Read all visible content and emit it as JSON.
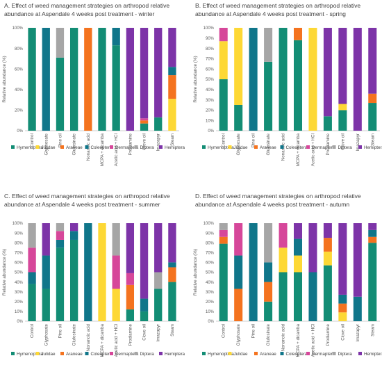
{
  "colors": {
    "Hymenoptera": "#138D75",
    "Julidae": "#FDD835",
    "Araneae": "#F4731F",
    "Coleoptera": "#10768A",
    "Dermaptera": "#D6479A",
    "Diptera": "#A6A6A6",
    "Hemiptera": "#7D34A8"
  },
  "chart_data": [
    {
      "type": "bar",
      "stacked": true,
      "title": "A. Effect of weed management strategies on arthropod relative abundance at Aspendale 4 weeks post treatment - winter",
      "title_lines": [
        "A. Effect of weed management strategies on arthropod relative",
        "abundance at Aspendale 4 weeks post treatment - winter"
      ],
      "ylabel": "Relative abundance (%)",
      "ylim": [
        0,
        100
      ],
      "yticks": [
        "0%",
        "20%",
        "40%",
        "60%",
        "80%",
        "100%"
      ],
      "grid": false,
      "legend": "bottom",
      "categories": [
        "Control",
        "Glyphosate",
        "Pine oil",
        "Glufosinate",
        "Nonanoic acid",
        "MCPA + dicamba",
        "Acetic acid + HCl",
        "Prodiamine",
        "Clove oil",
        "Imazapyr",
        "Steam"
      ],
      "series": [
        {
          "name": "Hymenoptera",
          "values": [
            100,
            0,
            71,
            100,
            0,
            100,
            83,
            0,
            7,
            13,
            0
          ]
        },
        {
          "name": "Julidae",
          "values": [
            0,
            0,
            0,
            0,
            0,
            0,
            0,
            0,
            0,
            0,
            31
          ]
        },
        {
          "name": "Araneae",
          "values": [
            0,
            0,
            0,
            0,
            100,
            0,
            0,
            0,
            3,
            0,
            23
          ]
        },
        {
          "name": "Coleoptera",
          "values": [
            0,
            100,
            0,
            0,
            0,
            0,
            17,
            0,
            0,
            0,
            8
          ]
        },
        {
          "name": "Dermaptera",
          "values": [
            0,
            0,
            0,
            0,
            0,
            0,
            0,
            0,
            2,
            0,
            0
          ]
        },
        {
          "name": "Diptera",
          "values": [
            0,
            0,
            29,
            0,
            0,
            0,
            0,
            0,
            0,
            0,
            0
          ]
        },
        {
          "name": "Hemiptera",
          "values": [
            0,
            0,
            0,
            0,
            0,
            0,
            0,
            100,
            88,
            87,
            38
          ]
        }
      ]
    },
    {
      "type": "bar",
      "stacked": true,
      "title": "B. Effect of weed management strategies on arthropod relative abundance at Aspendale 4 weeks post treatment - spring",
      "title_lines": [
        "B. Effect of weed management strategies on arthropod relative",
        "abundance at Aspendale 4 weeks post treatment - spring"
      ],
      "ylabel": "Relative abundance (%)",
      "ylim": [
        0,
        100
      ],
      "yticks": [
        "0%",
        "10%",
        "20%",
        "30%",
        "40%",
        "50%",
        "60%",
        "70%",
        "80%",
        "90%",
        "100%"
      ],
      "grid": false,
      "legend": "bottom",
      "categories": [
        "Control",
        "Glyphosate",
        "Pine oil",
        "Glufosinate",
        "Nonanoic acid",
        "MCPA + dicamba",
        "Acetic acid + HCl",
        "Prodiamine",
        "Clove oil",
        "Imazapyr",
        "Steam"
      ],
      "series": [
        {
          "name": "Hymenoptera",
          "values": [
            50,
            25,
            0,
            67,
            100,
            88,
            0,
            14,
            20,
            0,
            27
          ]
        },
        {
          "name": "Julidae",
          "values": [
            37,
            75,
            0,
            0,
            0,
            0,
            100,
            0,
            6,
            0,
            0
          ]
        },
        {
          "name": "Araneae",
          "values": [
            0,
            0,
            0,
            0,
            0,
            12,
            0,
            0,
            0,
            0,
            9
          ]
        },
        {
          "name": "Coleoptera",
          "values": [
            0,
            0,
            100,
            0,
            0,
            0,
            0,
            0,
            0,
            0,
            0
          ]
        },
        {
          "name": "Dermaptera",
          "values": [
            13,
            0,
            0,
            0,
            0,
            0,
            0,
            0,
            0,
            0,
            0
          ]
        },
        {
          "name": "Diptera",
          "values": [
            0,
            0,
            0,
            33,
            0,
            0,
            0,
            0,
            0,
            0,
            0
          ]
        },
        {
          "name": "Hemiptera",
          "values": [
            0,
            0,
            0,
            0,
            0,
            0,
            0,
            86,
            74,
            100,
            64
          ]
        }
      ]
    },
    {
      "type": "bar",
      "stacked": true,
      "title": "C. Effect of weed management strategies on arthropod relative abundance at Aspendale 4 weeks post treatment - summer",
      "title_lines": [
        "C. Effect of weed management strategies on arthropod relative",
        "abundance at Aspendale 4 weeks post treatment - summer"
      ],
      "ylabel": "Relative abundance (%)",
      "ylim": [
        0,
        100
      ],
      "yticks": [
        "0%",
        "10%",
        "20%",
        "30%",
        "40%",
        "50%",
        "60%",
        "70%",
        "80%",
        "90%",
        "100%"
      ],
      "grid": false,
      "legend": "bottom",
      "categories": [
        "Control",
        "Glyphosate",
        "Pine oil",
        "Glufosinate",
        "Nonanoic acid",
        "MCPA + dicamba",
        "Acetic acid + HCl",
        "Prodiamine",
        "Clove oil",
        "Imazapyr",
        "Steam"
      ],
      "series": [
        {
          "name": "Hymenoptera",
          "values": [
            38,
            33,
            75,
            83,
            0,
            0,
            0,
            12,
            10,
            33,
            40
          ]
        },
        {
          "name": "Julidae",
          "values": [
            0,
            0,
            0,
            0,
            0,
            100,
            33,
            0,
            0,
            0,
            0
          ]
        },
        {
          "name": "Araneae",
          "values": [
            0,
            0,
            0,
            0,
            0,
            0,
            0,
            25,
            0,
            0,
            15
          ]
        },
        {
          "name": "Coleoptera",
          "values": [
            12,
            34,
            8,
            9,
            100,
            0,
            0,
            0,
            13,
            0,
            5
          ]
        },
        {
          "name": "Dermaptera",
          "values": [
            25,
            0,
            9,
            0,
            0,
            0,
            34,
            12,
            0,
            0,
            0
          ]
        },
        {
          "name": "Diptera",
          "values": [
            25,
            0,
            8,
            0,
            0,
            0,
            33,
            0,
            0,
            17,
            0
          ]
        },
        {
          "name": "Hemiptera",
          "values": [
            0,
            33,
            0,
            8,
            0,
            0,
            0,
            51,
            77,
            50,
            40
          ]
        }
      ]
    },
    {
      "type": "bar",
      "stacked": true,
      "title": "D. Effect of weed management strategies on arthropod relative abundance at Aspendale 4 weeks post treatment - autumn",
      "title_lines": [
        "D. Effect of weed management strategies on arthropod relative",
        "abundance at Aspendale 4 weeks post treatment - autumn"
      ],
      "ylabel": "Relative abundance (%)",
      "ylim": [
        0,
        100
      ],
      "yticks": [
        "0%",
        "10%",
        "20%",
        "30%",
        "40%",
        "50%",
        "60%",
        "70%",
        "80%",
        "90%",
        "100%"
      ],
      "grid": false,
      "legend": "bottom",
      "categories": [
        "Control",
        "Glyphosate",
        "Pine oil",
        "Glufosinate",
        "Nonanoic acid",
        "MCPA + dicamba",
        "Acetic acid + HCl",
        "Prodiamine",
        "Clove oil",
        "Imazapyr",
        "Steam"
      ],
      "series": [
        {
          "name": "Hymenoptera",
          "values": [
            79,
            0,
            0,
            20,
            50,
            50,
            0,
            57,
            0,
            0,
            80
          ]
        },
        {
          "name": "Julidae",
          "values": [
            0,
            0,
            0,
            0,
            25,
            17,
            0,
            14,
            9,
            0,
            0
          ]
        },
        {
          "name": "Araneae",
          "values": [
            7,
            33,
            0,
            20,
            0,
            0,
            0,
            14,
            9,
            0,
            6
          ]
        },
        {
          "name": "Coleoptera",
          "values": [
            0,
            34,
            100,
            20,
            0,
            17,
            50,
            0,
            9,
            25,
            7
          ]
        },
        {
          "name": "Dermaptera",
          "values": [
            7,
            33,
            0,
            0,
            25,
            0,
            0,
            0,
            0,
            0,
            0
          ]
        },
        {
          "name": "Diptera",
          "values": [
            7,
            0,
            0,
            40,
            0,
            0,
            0,
            0,
            0,
            0,
            0
          ]
        },
        {
          "name": "Hemiptera",
          "values": [
            0,
            0,
            0,
            0,
            0,
            16,
            50,
            15,
            73,
            75,
            7
          ]
        }
      ]
    }
  ]
}
